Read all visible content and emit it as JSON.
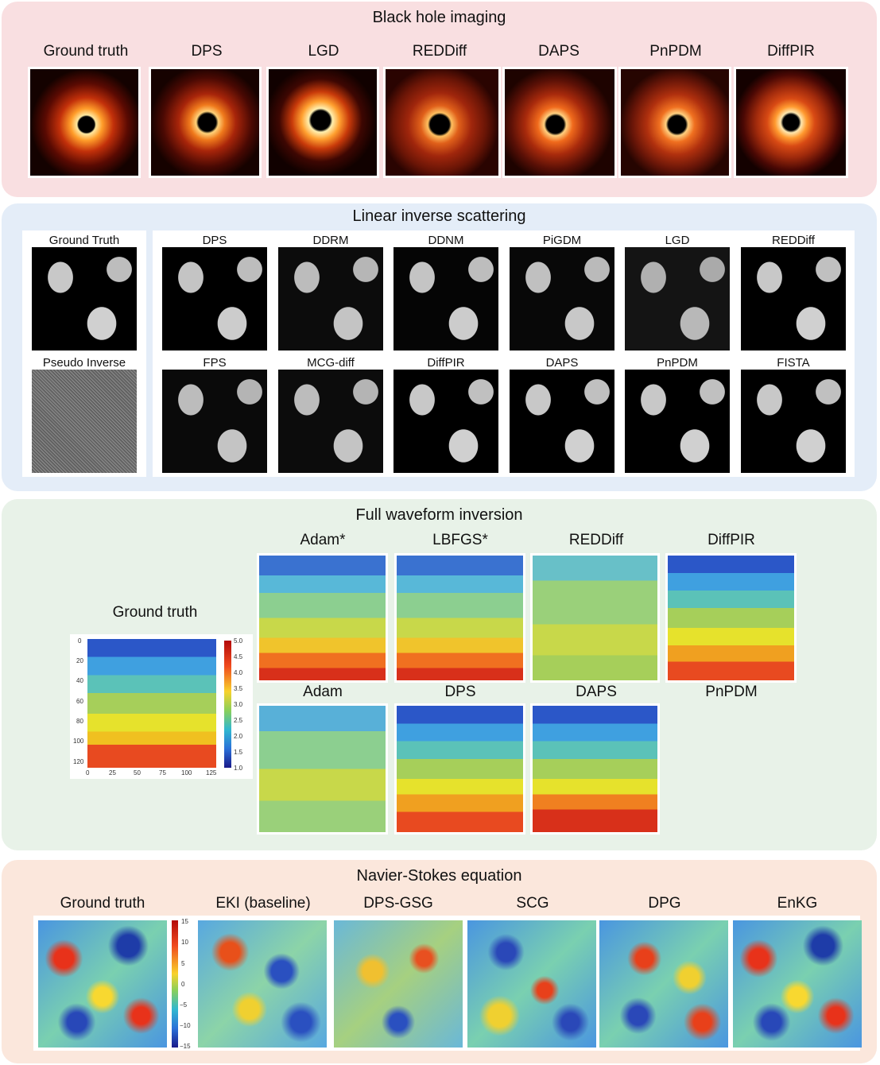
{
  "sections": {
    "black_hole": {
      "title": "Black hole imaging",
      "labels": [
        "Ground truth",
        "DPS",
        "LGD",
        "REDDiff",
        "DAPS",
        "PnPDM",
        "DiffPIR"
      ]
    },
    "scattering": {
      "title": "Linear inverse scattering",
      "left_labels": [
        "Ground Truth",
        "Pseudo Inverse"
      ],
      "row1_labels": [
        "DPS",
        "DDRM",
        "DDNM",
        "PiGDM",
        "LGD",
        "REDDiff"
      ],
      "row2_labels": [
        "FPS",
        "MCG-diff",
        "DiffPIR",
        "DAPS",
        "PnPDM",
        "FISTA"
      ]
    },
    "waveform": {
      "title": "Full waveform inversion",
      "ground_truth_label": "Ground truth",
      "row1_labels": [
        "Adam*",
        "LBFGS*",
        "REDDiff",
        "DiffPIR"
      ],
      "row2_labels": [
        "Adam",
        "DPS",
        "DAPS",
        "PnPDM"
      ],
      "y_ticks": [
        "0",
        "20",
        "40",
        "60",
        "80",
        "100",
        "120"
      ],
      "x_ticks": [
        "0",
        "25",
        "50",
        "75",
        "100",
        "125"
      ],
      "colorbar_ticks": [
        "5.0",
        "4.5",
        "4.0",
        "3.5",
        "3.0",
        "2.5",
        "2.0",
        "1.5",
        "1.0"
      ]
    },
    "navier_stokes": {
      "title": "Navier-Stokes equation",
      "labels": [
        "Ground truth",
        "EKI (baseline)",
        "DPS-GSG",
        "SCG",
        "DPG",
        "EnKG"
      ],
      "colorbar_ticks": [
        "15",
        "10",
        "5",
        "0",
        "−5",
        "−10",
        "−15"
      ]
    }
  }
}
